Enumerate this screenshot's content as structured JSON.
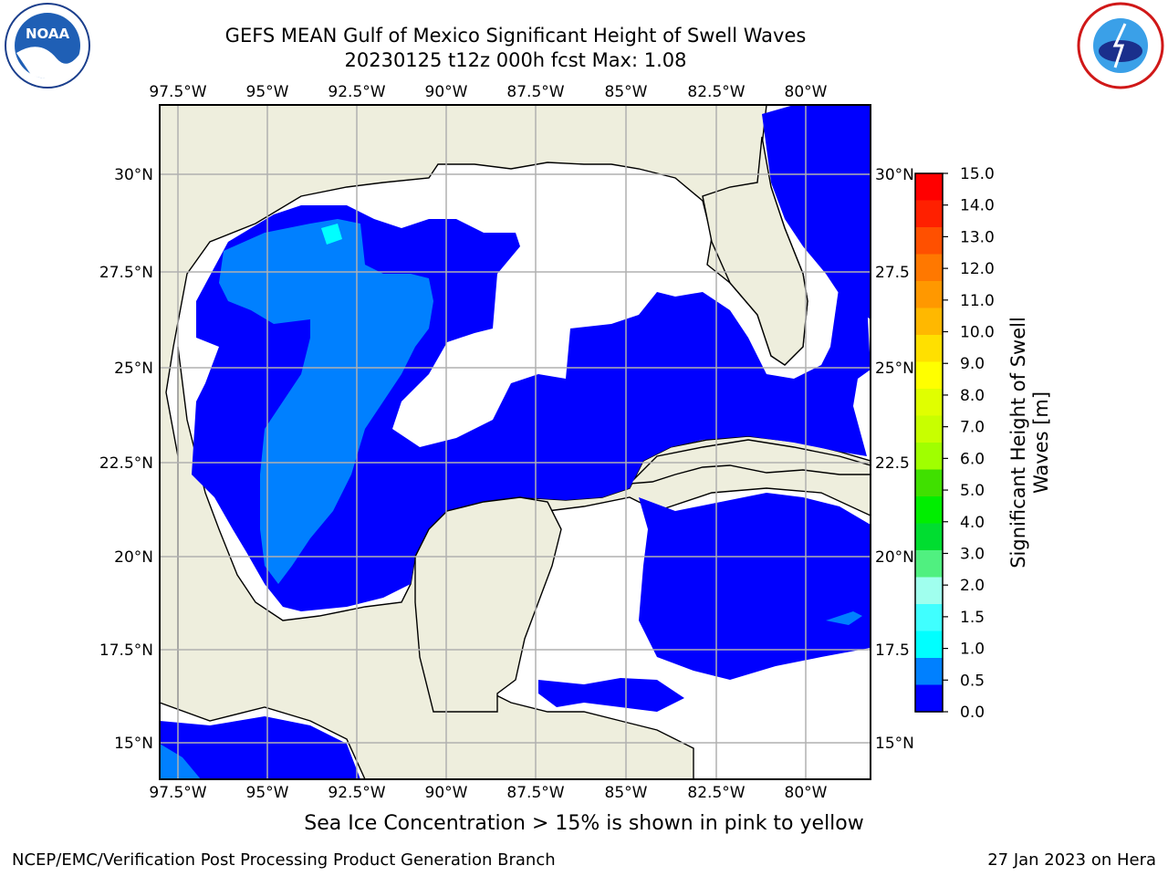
{
  "title_line1": "GEFS MEAN Gulf of Mexico Significant Height of Swell Waves",
  "title_line2": "20230125 t12z 000h fcst   Max: 1.08",
  "logos": {
    "left": "noaa-logo",
    "right": "national-weather-service-logo"
  },
  "map": {
    "lon_labels": [
      "97.5°W",
      "95°W",
      "92.5°W",
      "90°W",
      "87.5°W",
      "85°W",
      "82.5°W",
      "80°W"
    ],
    "lat_labels": [
      "30°N",
      "27.5°N",
      "25°N",
      "22.5°N",
      "20°N",
      "17.5°N",
      "15°N"
    ],
    "lat_labels_right": [
      "30°N",
      "27.5",
      "25°N",
      "22.5",
      "20°N",
      "17.5",
      "15°N"
    ],
    "colors": {
      "land": "#eeeedd",
      "ocean_zero": "#ffffff",
      "swell_0_0.5": "#0000ff",
      "swell_0.5_1.0": "#0080ff",
      "swell_1.0_1.5": "#00ffff",
      "grid": "#b0b0b0"
    }
  },
  "colorbar": {
    "label": "Significant Height of Swell Waves [m]",
    "label_line1": "Significant Height of Swell",
    "label_line2": "Waves [m]",
    "ticks": [
      "15.0",
      "14.0",
      "13.0",
      "12.0",
      "11.0",
      "10.0",
      "9.0",
      "8.0",
      "7.0",
      "6.0",
      "5.0",
      "4.0",
      "3.0",
      "2.0",
      "1.5",
      "1.0",
      "0.5",
      "0.0"
    ],
    "colors": [
      "#ff0000",
      "#ff2000",
      "#ff5000",
      "#ff7800",
      "#ff9800",
      "#ffb800",
      "#ffe000",
      "#ffff00",
      "#e0ff00",
      "#c8ff00",
      "#a0ff00",
      "#40e000",
      "#00ee00",
      "#00dd30",
      "#50f080",
      "#a0ffee",
      "#40ffff",
      "#00ffff",
      "#0080ff",
      "#0000ff"
    ]
  },
  "subnote": "Sea Ice Concentration > 15% is shown in pink to yellow",
  "footer_left": "NCEP/EMC/Verification Post Processing Product Generation Branch",
  "footer_right": "27 Jan 2023 on Hera"
}
